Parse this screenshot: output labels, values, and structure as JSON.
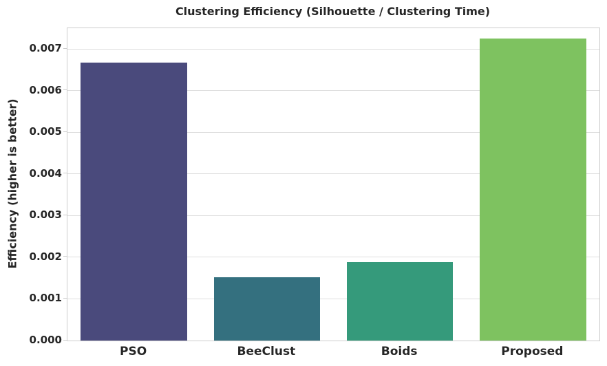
{
  "figure": {
    "title": "Clustering Efficiency (Silhouette / Clustering Time)",
    "y_axis_label": "Efficiency (higher is better)"
  },
  "chart_data": {
    "type": "bar",
    "title": "Clustering Efficiency (Silhouette / Clustering Time)",
    "xlabel": "",
    "ylabel": "Efficiency (higher is better)",
    "categories": [
      "PSO",
      "BeeClust",
      "Boids",
      "Proposed"
    ],
    "values": [
      0.00667,
      0.00152,
      0.00188,
      0.00725
    ],
    "bar_colors": [
      "#4a4a7c",
      "#34707f",
      "#359a7b",
      "#7ec260"
    ],
    "ylim": [
      0,
      0.0075
    ],
    "yticks": [
      0,
      0.001,
      0.002,
      0.003,
      0.004,
      0.005,
      0.006,
      0.007
    ],
    "ytick_labels": [
      "0.000",
      "0.001",
      "0.002",
      "0.003",
      "0.004",
      "0.005",
      "0.006",
      "0.007"
    ],
    "grid": "horizontal",
    "legend": "none",
    "bar_width_fraction": 0.8,
    "background_color": "#ffffff",
    "grid_color": "#dddddd",
    "spine_color": "#cccccc",
    "text_color": "#262626"
  }
}
